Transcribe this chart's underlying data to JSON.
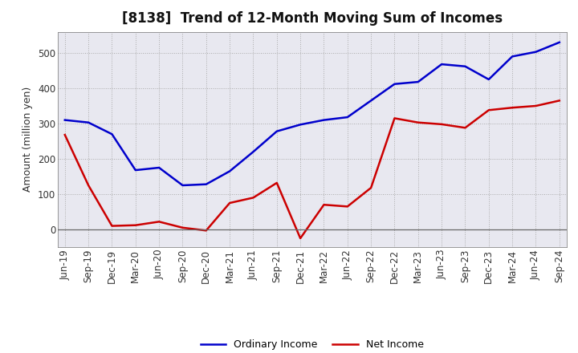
{
  "title": "[8138]  Trend of 12-Month Moving Sum of Incomes",
  "ylabel": "Amount (million yen)",
  "plot_bg_color": "#e8e8f0",
  "fig_bg_color": "#ffffff",
  "grid_color": "#aaaaaa",
  "x_labels": [
    "Jun-19",
    "Sep-19",
    "Dec-19",
    "Mar-20",
    "Jun-20",
    "Sep-20",
    "Dec-20",
    "Mar-21",
    "Jun-21",
    "Sep-21",
    "Dec-21",
    "Mar-22",
    "Jun-22",
    "Sep-22",
    "Dec-22",
    "Mar-23",
    "Jun-23",
    "Sep-23",
    "Dec-23",
    "Mar-24",
    "Jun-24",
    "Sep-24"
  ],
  "ordinary_income": [
    310,
    303,
    270,
    168,
    175,
    125,
    128,
    165,
    220,
    278,
    297,
    310,
    318,
    365,
    412,
    418,
    468,
    462,
    425,
    490,
    503,
    530
  ],
  "net_income": [
    268,
    125,
    10,
    12,
    22,
    5,
    -3,
    75,
    90,
    132,
    -25,
    70,
    65,
    118,
    315,
    303,
    298,
    288,
    338,
    345,
    350,
    365
  ],
  "ordinary_color": "#0000cc",
  "net_color": "#cc0000",
  "ylim_min": -50,
  "ylim_max": 560,
  "yticks": [
    0,
    100,
    200,
    300,
    400,
    500
  ],
  "title_fontsize": 12,
  "axis_fontsize": 8.5,
  "ylabel_fontsize": 9,
  "legend_fontsize": 9
}
